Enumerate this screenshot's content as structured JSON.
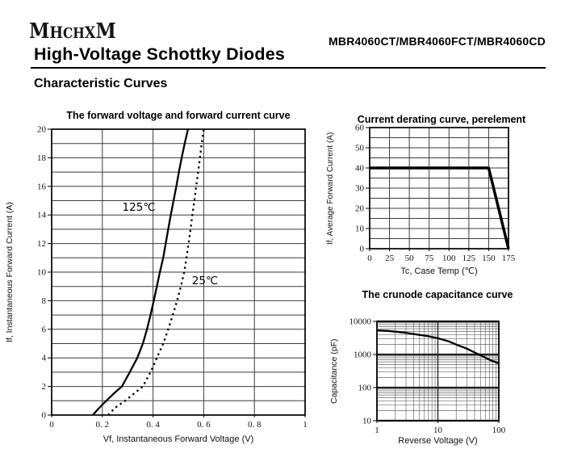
{
  "header": {
    "logo": "MHCHXM",
    "part_numbers": "MBR4060CT/MBR4060FCT/MBR4060CD",
    "title": "High-Voltage Schottky Diodes",
    "section_heading": "Characteristic Curves"
  },
  "colors": {
    "background": "#ffffff",
    "ink": "#000000",
    "grid_major": "#3c3c3c",
    "grid_minor": "#6a6a6a"
  },
  "chart_data": [
    {
      "type": "line",
      "title": "The forward voltage and forward current curve",
      "xlabel": "Vf, Instantaneous Forward Voltage (V)",
      "ylabel": "If, Instantaneous Forward Current (A)",
      "xlim": [
        0,
        1
      ],
      "ylim": [
        0,
        20
      ],
      "xscale": "linear",
      "yscale": "linear",
      "x_grid_step": 0.2,
      "y_grid_step": 1,
      "x_ticks": [
        {
          "v": 0,
          "label": "0"
        },
        {
          "v": 0.2,
          "label": "0. 2"
        },
        {
          "v": 0.4,
          "label": "0. 4"
        },
        {
          "v": 0.6,
          "label": "0. 6"
        },
        {
          "v": 0.8,
          "label": "0. 8"
        },
        {
          "v": 1,
          "label": "1"
        }
      ],
      "y_ticks": [
        {
          "v": 0,
          "label": "0"
        },
        {
          "v": 2,
          "label": "2"
        },
        {
          "v": 4,
          "label": "4"
        },
        {
          "v": 6,
          "label": "6"
        },
        {
          "v": 8,
          "label": "8"
        },
        {
          "v": 10,
          "label": "10"
        },
        {
          "v": 12,
          "label": "12"
        },
        {
          "v": 14,
          "label": "14"
        },
        {
          "v": 16,
          "label": "16"
        },
        {
          "v": 18,
          "label": "18"
        },
        {
          "v": 20,
          "label": "20"
        }
      ],
      "series": [
        {
          "name": "125℃",
          "line": "solid",
          "points": [
            [
              0.162,
              0
            ],
            [
              0.185,
              0.45
            ],
            [
              0.21,
              0.9
            ],
            [
              0.245,
              1.5
            ],
            [
              0.277,
              2
            ],
            [
              0.305,
              2.9
            ],
            [
              0.338,
              4
            ],
            [
              0.36,
              5
            ],
            [
              0.376,
              6
            ],
            [
              0.39,
              7
            ],
            [
              0.403,
              8
            ],
            [
              0.415,
              9
            ],
            [
              0.427,
              10
            ],
            [
              0.44,
              11
            ],
            [
              0.45,
              12
            ],
            [
              0.46,
              13
            ],
            [
              0.47,
              14
            ],
            [
              0.481,
              15
            ],
            [
              0.492,
              16
            ],
            [
              0.502,
              17
            ],
            [
              0.513,
              18
            ],
            [
              0.525,
              19
            ],
            [
              0.538,
              20
            ]
          ]
        },
        {
          "name": "25℃",
          "line": "dotted",
          "points": [
            [
              0.223,
              0
            ],
            [
              0.25,
              0.5
            ],
            [
              0.29,
              1
            ],
            [
              0.325,
              1.5
            ],
            [
              0.36,
              2
            ],
            [
              0.39,
              3
            ],
            [
              0.415,
              4
            ],
            [
              0.44,
              5
            ],
            [
              0.46,
              6
            ],
            [
              0.478,
              7
            ],
            [
              0.495,
              8
            ],
            [
              0.51,
              9
            ],
            [
              0.523,
              10
            ],
            [
              0.532,
              11
            ],
            [
              0.54,
              12
            ],
            [
              0.548,
              13
            ],
            [
              0.555,
              14
            ],
            [
              0.563,
              15
            ],
            [
              0.57,
              16
            ],
            [
              0.578,
              17
            ],
            [
              0.585,
              18
            ],
            [
              0.592,
              19
            ],
            [
              0.6,
              20
            ]
          ]
        }
      ],
      "annotations": [
        {
          "text": "125℃",
          "x": 0.344,
          "y": 14.55
        },
        {
          "text": "25℃",
          "x": 0.605,
          "y": 9.4
        }
      ]
    },
    {
      "type": "line",
      "title": "Current derating curve, perelement",
      "xlabel": "Tc, Case Temp (℃)",
      "ylabel": "If, Average Forward Current (A)",
      "xlim": [
        0,
        175
      ],
      "ylim": [
        0,
        60
      ],
      "xscale": "linear",
      "yscale": "linear",
      "x_grid_step": 25,
      "y_grid_step": 5,
      "x_ticks": [
        {
          "v": 0,
          "label": "0"
        },
        {
          "v": 25,
          "label": "25"
        },
        {
          "v": 50,
          "label": "50"
        },
        {
          "v": 75,
          "label": "75"
        },
        {
          "v": 100,
          "label": "100"
        },
        {
          "v": 125,
          "label": "125"
        },
        {
          "v": 150,
          "label": "150"
        },
        {
          "v": 175,
          "label": "175"
        }
      ],
      "y_ticks": [
        {
          "v": 0,
          "label": "0"
        },
        {
          "v": 10,
          "label": "10"
        },
        {
          "v": 20,
          "label": "20"
        },
        {
          "v": 30,
          "label": "30"
        },
        {
          "v": 40,
          "label": "40"
        },
        {
          "v": 50,
          "label": "50"
        },
        {
          "v": 60,
          "label": "60"
        }
      ],
      "series": [
        {
          "name": "derating",
          "line": "thick",
          "points": [
            [
              0,
              40
            ],
            [
              150,
              40
            ],
            [
              175,
              0
            ]
          ]
        }
      ],
      "annotations": []
    },
    {
      "type": "line",
      "title": "The crunode capacitance curve",
      "xlabel": "Reverse Voltage (V)",
      "ylabel": "Capacitance (pF)",
      "xlim": [
        1,
        100
      ],
      "ylim": [
        10,
        10000
      ],
      "xscale": "log",
      "yscale": "log",
      "x_ticks": [
        {
          "v": 1,
          "label": "1"
        },
        {
          "v": 10,
          "label": "10"
        },
        {
          "v": 100,
          "label": "100"
        }
      ],
      "y_ticks": [
        {
          "v": 10,
          "label": "10"
        },
        {
          "v": 100,
          "label": "100"
        },
        {
          "v": 1000,
          "label": "1000"
        },
        {
          "v": 10000,
          "label": "10000"
        }
      ],
      "series": [
        {
          "name": "capacitance",
          "line": "solid",
          "points": [
            [
              1,
              5400
            ],
            [
              1.5,
              5150
            ],
            [
              2,
              4900
            ],
            [
              3,
              4500
            ],
            [
              5,
              3900
            ],
            [
              7,
              3550
            ],
            [
              10,
              3100
            ],
            [
              15,
              2500
            ],
            [
              20,
              2000
            ],
            [
              30,
              1500
            ],
            [
              40,
              1150
            ],
            [
              50,
              950
            ],
            [
              70,
              700
            ],
            [
              100,
              540
            ]
          ]
        }
      ],
      "annotations": []
    }
  ]
}
